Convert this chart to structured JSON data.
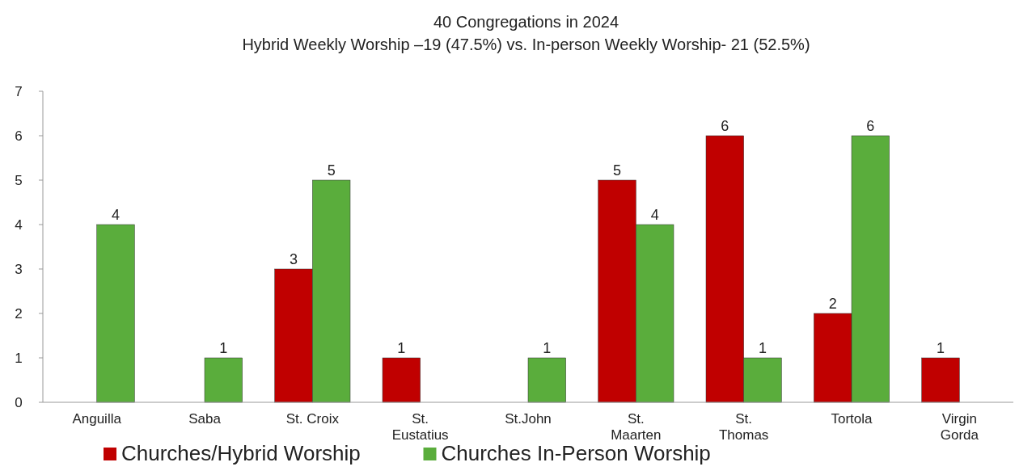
{
  "chart_data": {
    "type": "bar",
    "title": "40 Congregations in 2024",
    "subtitle": "Hybrid Weekly Worship –19 (47.5%) vs. In-person Weekly Worship- 21 (52.5%)",
    "categories": [
      "Anguilla",
      "Saba",
      "St. Croix",
      "St. Eustatius",
      "St.John",
      "St. Maarten",
      "St. Thomas",
      "Tortola",
      "Virgin Gorda"
    ],
    "series": [
      {
        "name": "Churches/Hybrid Worship",
        "color": "#c00000",
        "values": [
          null,
          null,
          3,
          1,
          null,
          5,
          6,
          2,
          1
        ]
      },
      {
        "name": "Churches In-Person Worship",
        "color": "#5aad3c",
        "values": [
          4,
          1,
          5,
          null,
          1,
          4,
          1,
          6,
          null
        ]
      }
    ],
    "ylim": [
      0,
      7
    ],
    "yticks": [
      0,
      1,
      2,
      3,
      4,
      5,
      6,
      7
    ],
    "data_labels": true,
    "legend": "bottom",
    "grid": false
  }
}
